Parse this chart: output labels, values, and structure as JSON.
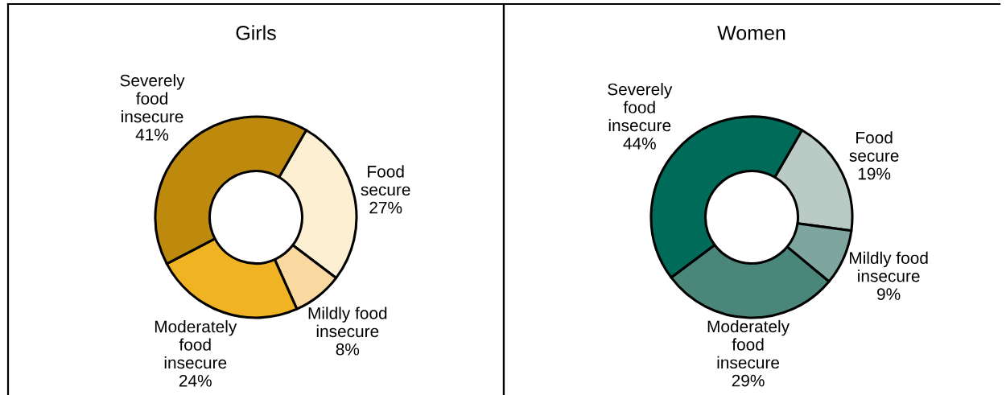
{
  "chart_data": [
    {
      "type": "donut",
      "title": "Girls",
      "categories": [
        "Food\nsecure",
        "Mildly food\ninsecure",
        "Moderately\nfood\ninsecure",
        "Severely\nfood\ninsecure"
      ],
      "values": [
        27,
        8,
        24,
        41
      ],
      "colors": [
        "#fdf0d2",
        "#f9d9a0",
        "#f0b323",
        "#be8a0e"
      ],
      "value_labels": [
        "27%",
        "8%",
        "24%",
        "41%"
      ]
    },
    {
      "type": "donut",
      "title": "Women",
      "categories": [
        "Food\nsecure",
        "Mildly food\ninsecure",
        "Moderately\nfood\ninsecure",
        "Severely\nfood\ninsecure"
      ],
      "values": [
        19,
        9,
        29,
        44
      ],
      "colors": [
        "#bacbc5",
        "#7fa69e",
        "#4a8679",
        "#006b59"
      ],
      "value_labels": [
        "19%",
        "9%",
        "29%",
        "44%"
      ]
    }
  ]
}
